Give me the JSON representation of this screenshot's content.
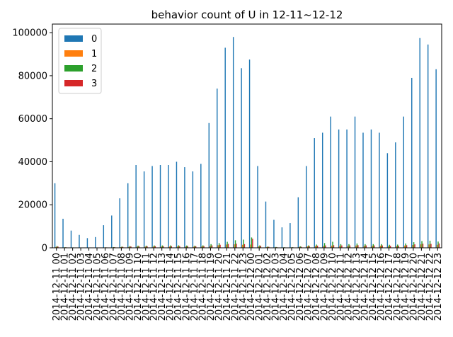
{
  "chart_data": {
    "type": "bar",
    "title": "behavior count of U in 12-11~12-12",
    "xlabel": "",
    "ylabel": "",
    "ylim": [
      0,
      104000
    ],
    "yticks": [
      0,
      20000,
      40000,
      60000,
      80000,
      100000
    ],
    "grid": false,
    "legend_position": "top-left",
    "categories": [
      "2014-12-11 00",
      "2014-12-11 01",
      "2014-12-11 02",
      "2014-12-11 03",
      "2014-12-11 04",
      "2014-12-11 05",
      "2014-12-11 06",
      "2014-12-11 07",
      "2014-12-11 08",
      "2014-12-11 09",
      "2014-12-11 10",
      "2014-12-11 11",
      "2014-12-11 12",
      "2014-12-11 13",
      "2014-12-11 14",
      "2014-12-11 15",
      "2014-12-11 16",
      "2014-12-11 17",
      "2014-12-11 18",
      "2014-12-11 19",
      "2014-12-11 20",
      "2014-12-11 21",
      "2014-12-11 22",
      "2014-12-11 23",
      "2014-12-12 00",
      "2014-12-12 01",
      "2014-12-12 02",
      "2014-12-12 03",
      "2014-12-12 04",
      "2014-12-12 05",
      "2014-12-12 06",
      "2014-12-12 07",
      "2014-12-12 08",
      "2014-12-12 09",
      "2014-12-12 10",
      "2014-12-12 11",
      "2014-12-12 12",
      "2014-12-12 13",
      "2014-12-12 14",
      "2014-12-12 15",
      "2014-12-12 16",
      "2014-12-12 17",
      "2014-12-12 18",
      "2014-12-12 19",
      "2014-12-12 20",
      "2014-12-12 21",
      "2014-12-12 22",
      "2014-12-12 23"
    ],
    "series": [
      {
        "name": "0",
        "color": "#1f77b4",
        "values": [
          30000,
          13500,
          8000,
          6000,
          4500,
          5000,
          10500,
          15000,
          23000,
          30000,
          38500,
          35500,
          38000,
          38500,
          38500,
          40000,
          37500,
          35500,
          39000,
          58000,
          74000,
          93000,
          98000,
          83500,
          87500,
          38000,
          21500,
          13000,
          9500,
          11500,
          23500,
          38000,
          51000,
          53500,
          61000,
          55000,
          55000,
          61000,
          53500,
          55000,
          53500,
          44000,
          49000,
          61000,
          79000,
          97500,
          94500,
          83000
        ]
      },
      {
        "name": "1",
        "color": "#ff7f0e",
        "values": [
          400,
          150,
          100,
          80,
          60,
          60,
          120,
          200,
          300,
          450,
          550,
          550,
          600,
          600,
          600,
          650,
          600,
          550,
          650,
          900,
          1200,
          1500,
          1600,
          1400,
          1500,
          700,
          350,
          200,
          150,
          180,
          400,
          650,
          850,
          900,
          1000,
          950,
          950,
          1050,
          950,
          950,
          950,
          800,
          850,
          1050,
          1300,
          1600,
          1550,
          1400
        ]
      },
      {
        "name": "2",
        "color": "#2ca02c",
        "values": [
          800,
          300,
          200,
          150,
          100,
          100,
          250,
          350,
          550,
          800,
          1000,
          1000,
          1100,
          1100,
          1100,
          1150,
          1050,
          1000,
          1150,
          1700,
          2200,
          2800,
          3500,
          3800,
          4800,
          1100,
          600,
          400,
          280,
          330,
          700,
          1100,
          1500,
          2200,
          2800,
          1700,
          1700,
          2000,
          1700,
          1700,
          1700,
          1400,
          1500,
          2000,
          2600,
          3100,
          3300,
          2900
        ]
      },
      {
        "name": "3",
        "color": "#d62728",
        "values": [
          600,
          250,
          150,
          120,
          90,
          100,
          200,
          300,
          450,
          600,
          750,
          700,
          750,
          750,
          750,
          800,
          750,
          700,
          800,
          1100,
          1400,
          1800,
          1900,
          1700,
          4200,
          900,
          450,
          280,
          200,
          230,
          500,
          800,
          1000,
          1100,
          1200,
          1100,
          1100,
          1200,
          1100,
          1100,
          1100,
          900,
          1000,
          1200,
          1600,
          1900,
          1800,
          2000
        ]
      }
    ]
  }
}
